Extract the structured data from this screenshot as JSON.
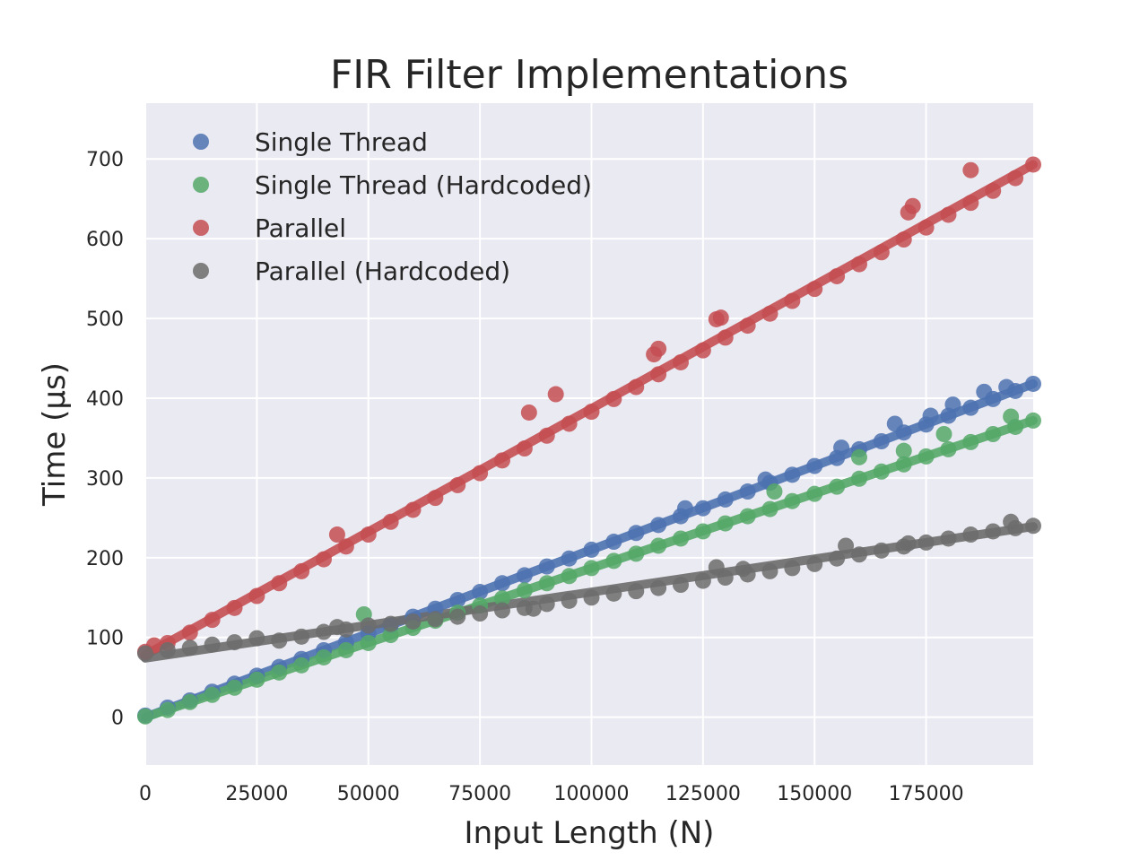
{
  "chart_data": {
    "type": "scatter",
    "title": "FIR Filter Implementations",
    "xlabel": "Input Length (N)",
    "ylabel": "Time (μs)",
    "xlim": [
      0,
      199000
    ],
    "ylim": [
      -60,
      770
    ],
    "xticks": [
      0,
      25000,
      50000,
      75000,
      100000,
      125000,
      150000,
      175000
    ],
    "xtick_labels": [
      "0",
      "25000",
      "50000",
      "75000",
      "100000",
      "125000",
      "150000",
      "175000"
    ],
    "yticks": [
      0,
      100,
      200,
      300,
      400,
      500,
      600,
      700
    ],
    "ytick_labels": [
      "0",
      "100",
      "200",
      "300",
      "400",
      "500",
      "600",
      "700"
    ],
    "grid": true,
    "legend_position": "top-left",
    "background": "#EAEAF2",
    "series": [
      {
        "name": "Single Thread",
        "color": "#4C72B0",
        "trend": {
          "from": [
            0,
            0
          ],
          "to": [
            199000,
            418
          ]
        },
        "points": [
          [
            0,
            2
          ],
          [
            5000,
            12
          ],
          [
            10000,
            21
          ],
          [
            15000,
            32
          ],
          [
            20000,
            42
          ],
          [
            25000,
            52
          ],
          [
            30000,
            63
          ],
          [
            35000,
            73
          ],
          [
            40000,
            84
          ],
          [
            45000,
            94
          ],
          [
            50000,
            105
          ],
          [
            55000,
            115
          ],
          [
            60000,
            126
          ],
          [
            65000,
            136
          ],
          [
            70000,
            147
          ],
          [
            75000,
            157
          ],
          [
            80000,
            168
          ],
          [
            85000,
            178
          ],
          [
            90000,
            189
          ],
          [
            95000,
            199
          ],
          [
            100000,
            210
          ],
          [
            105000,
            220
          ],
          [
            110000,
            231
          ],
          [
            115000,
            241
          ],
          [
            120000,
            252
          ],
          [
            125000,
            262
          ],
          [
            130000,
            273
          ],
          [
            135000,
            283
          ],
          [
            140000,
            294
          ],
          [
            145000,
            304
          ],
          [
            150000,
            315
          ],
          [
            155000,
            325
          ],
          [
            160000,
            336
          ],
          [
            165000,
            346
          ],
          [
            170000,
            357
          ],
          [
            175000,
            367
          ],
          [
            180000,
            378
          ],
          [
            185000,
            388
          ],
          [
            190000,
            399
          ],
          [
            195000,
            409
          ],
          [
            199000,
            418
          ],
          [
            168000,
            368
          ],
          [
            176000,
            378
          ],
          [
            181000,
            392
          ],
          [
            188000,
            408
          ],
          [
            193000,
            414
          ],
          [
            121000,
            262
          ],
          [
            139000,
            298
          ],
          [
            156000,
            338
          ]
        ]
      },
      {
        "name": "Single Thread (Hardcoded)",
        "color": "#55A868",
        "trend": {
          "from": [
            0,
            0
          ],
          "to": [
            199000,
            372
          ]
        },
        "points": [
          [
            0,
            1
          ],
          [
            5000,
            9
          ],
          [
            10000,
            19
          ],
          [
            15000,
            28
          ],
          [
            20000,
            37
          ],
          [
            25000,
            47
          ],
          [
            30000,
            56
          ],
          [
            35000,
            65
          ],
          [
            40000,
            75
          ],
          [
            45000,
            84
          ],
          [
            50000,
            93
          ],
          [
            55000,
            103
          ],
          [
            60000,
            112
          ],
          [
            65000,
            121
          ],
          [
            70000,
            131
          ],
          [
            75000,
            140
          ],
          [
            80000,
            149
          ],
          [
            85000,
            159
          ],
          [
            90000,
            168
          ],
          [
            95000,
            177
          ],
          [
            100000,
            187
          ],
          [
            105000,
            196
          ],
          [
            110000,
            205
          ],
          [
            115000,
            215
          ],
          [
            120000,
            224
          ],
          [
            125000,
            233
          ],
          [
            130000,
            243
          ],
          [
            135000,
            252
          ],
          [
            140000,
            261
          ],
          [
            145000,
            271
          ],
          [
            150000,
            280
          ],
          [
            155000,
            289
          ],
          [
            160000,
            299
          ],
          [
            165000,
            308
          ],
          [
            170000,
            317
          ],
          [
            175000,
            327
          ],
          [
            180000,
            336
          ],
          [
            185000,
            345
          ],
          [
            190000,
            355
          ],
          [
            195000,
            364
          ],
          [
            199000,
            372
          ],
          [
            49000,
            129
          ],
          [
            141000,
            283
          ],
          [
            160000,
            326
          ],
          [
            170000,
            334
          ],
          [
            179000,
            355
          ],
          [
            194000,
            377
          ]
        ]
      },
      {
        "name": "Parallel",
        "color": "#C44E52",
        "trend": {
          "from": [
            0,
            78
          ],
          "to": [
            199000,
            693
          ]
        },
        "points": [
          [
            0,
            82
          ],
          [
            5000,
            93
          ],
          [
            10000,
            106
          ],
          [
            15000,
            122
          ],
          [
            20000,
            137
          ],
          [
            25000,
            152
          ],
          [
            30000,
            168
          ],
          [
            35000,
            183
          ],
          [
            40000,
            198
          ],
          [
            45000,
            214
          ],
          [
            50000,
            229
          ],
          [
            55000,
            245
          ],
          [
            60000,
            260
          ],
          [
            65000,
            275
          ],
          [
            70000,
            291
          ],
          [
            75000,
            306
          ],
          [
            80000,
            322
          ],
          [
            85000,
            337
          ],
          [
            90000,
            353
          ],
          [
            95000,
            368
          ],
          [
            100000,
            383
          ],
          [
            105000,
            399
          ],
          [
            110000,
            414
          ],
          [
            115000,
            430
          ],
          [
            120000,
            445
          ],
          [
            125000,
            460
          ],
          [
            130000,
            476
          ],
          [
            135000,
            491
          ],
          [
            140000,
            506
          ],
          [
            145000,
            522
          ],
          [
            150000,
            537
          ],
          [
            155000,
            553
          ],
          [
            160000,
            568
          ],
          [
            165000,
            583
          ],
          [
            170000,
            599
          ],
          [
            175000,
            614
          ],
          [
            180000,
            630
          ],
          [
            185000,
            645
          ],
          [
            190000,
            660
          ],
          [
            195000,
            676
          ],
          [
            199000,
            693
          ],
          [
            43000,
            229
          ],
          [
            86000,
            382
          ],
          [
            92000,
            405
          ],
          [
            115000,
            462
          ],
          [
            114000,
            455
          ],
          [
            128000,
            499
          ],
          [
            129000,
            501
          ],
          [
            171000,
            633
          ],
          [
            172000,
            641
          ],
          [
            185000,
            686
          ],
          [
            2000,
            90
          ]
        ]
      },
      {
        "name": "Parallel (Hardcoded)",
        "color": "#6C6C6C",
        "trend": {
          "from": [
            0,
            74
          ],
          "to": [
            199000,
            239
          ]
        },
        "points": [
          [
            0,
            80
          ],
          [
            5000,
            84
          ],
          [
            10000,
            87
          ],
          [
            15000,
            91
          ],
          [
            20000,
            94
          ],
          [
            25000,
            99
          ],
          [
            30000,
            96
          ],
          [
            35000,
            101
          ],
          [
            40000,
            107
          ],
          [
            45000,
            110
          ],
          [
            50000,
            115
          ],
          [
            55000,
            117
          ],
          [
            60000,
            120
          ],
          [
            65000,
            123
          ],
          [
            70000,
            126
          ],
          [
            75000,
            130
          ],
          [
            80000,
            134
          ],
          [
            85000,
            137
          ],
          [
            90000,
            142
          ],
          [
            95000,
            146
          ],
          [
            100000,
            150
          ],
          [
            105000,
            155
          ],
          [
            110000,
            158
          ],
          [
            115000,
            162
          ],
          [
            120000,
            166
          ],
          [
            125000,
            171
          ],
          [
            130000,
            175
          ],
          [
            135000,
            179
          ],
          [
            140000,
            183
          ],
          [
            145000,
            187
          ],
          [
            150000,
            192
          ],
          [
            155000,
            199
          ],
          [
            160000,
            204
          ],
          [
            165000,
            209
          ],
          [
            170000,
            214
          ],
          [
            175000,
            219
          ],
          [
            180000,
            224
          ],
          [
            185000,
            229
          ],
          [
            190000,
            233
          ],
          [
            195000,
            237
          ],
          [
            199000,
            240
          ],
          [
            43000,
            113
          ],
          [
            87000,
            136
          ],
          [
            128000,
            188
          ],
          [
            134000,
            186
          ],
          [
            157000,
            215
          ],
          [
            171000,
            218
          ],
          [
            194000,
            245
          ]
        ]
      }
    ]
  }
}
